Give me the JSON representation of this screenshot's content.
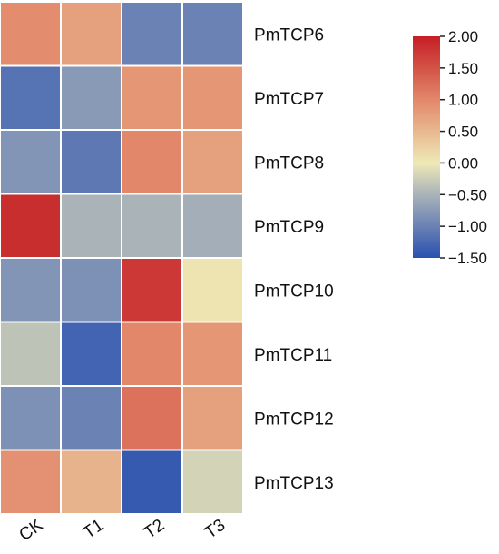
{
  "chart_data": {
    "type": "heatmap",
    "title": "",
    "xlabel": "",
    "ylabel": "",
    "columns": [
      "CK",
      "T1",
      "T2",
      "T3"
    ],
    "rows": [
      "PmTCP6",
      "PmTCP7",
      "PmTCP8",
      "PmTCP9",
      "PmTCP10",
      "PmTCP11",
      "PmTCP12",
      "PmTCP13"
    ],
    "values": [
      [
        0.95,
        0.75,
        -1.0,
        -1.0
      ],
      [
        -1.15,
        -0.75,
        0.85,
        0.85
      ],
      [
        -0.8,
        -1.1,
        1.0,
        0.75
      ],
      [
        1.85,
        -0.5,
        -0.5,
        -0.55
      ],
      [
        -0.8,
        -0.85,
        1.75,
        0.05
      ],
      [
        -0.35,
        -1.3,
        1.0,
        0.85
      ],
      [
        -0.85,
        -1.0,
        1.2,
        0.75
      ],
      [
        0.9,
        0.55,
        -1.4,
        -0.2
      ]
    ],
    "colorbar": {
      "min": -1.5,
      "max": 2.0,
      "ticks": [
        "2.00",
        "1.50",
        "1.00",
        "0.50",
        "0.00",
        "−0.50",
        "−1.00",
        "−1.50"
      ],
      "tick_values": [
        2.0,
        1.5,
        1.0,
        0.5,
        0.0,
        -0.5,
        -1.0,
        -1.5
      ],
      "colors": {
        "low": "#2a50b0",
        "mid_low": "#a9b3b8",
        "mid": "#eee9b6",
        "mid_high": "#e2876a",
        "high": "#c51e25"
      }
    },
    "grid_line_color": "#ffffff"
  }
}
